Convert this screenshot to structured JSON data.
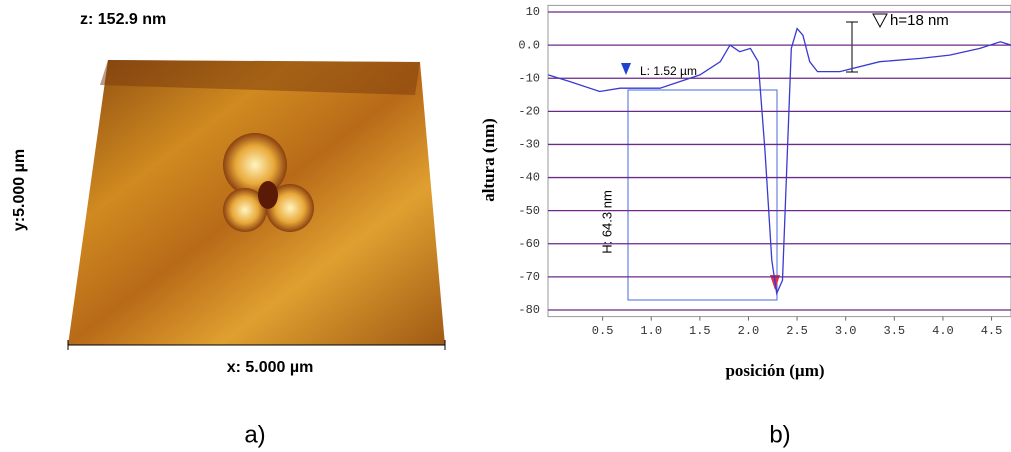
{
  "image_panel": {
    "z_label": "z: 152.9 nm",
    "y_label": "y:5.000 µm",
    "x_label": "x: 5.000 µm",
    "caption": "a)"
  },
  "chart_data": {
    "type": "line",
    "caption": "b)",
    "xlabel": "posición (µm)",
    "ylabel": "altura (nm)",
    "x": [
      -0.06,
      0.16,
      0.47,
      0.68,
      1.09,
      1.5,
      1.71,
      1.81,
      1.91,
      2.02,
      2.1,
      2.17,
      2.24,
      2.29,
      2.35,
      2.4,
      2.44,
      2.5,
      2.56,
      2.63,
      2.71,
      2.94,
      3.35,
      3.77,
      4.07,
      4.38,
      4.59,
      4.7
    ],
    "values": [
      -9,
      -11,
      -14,
      -13,
      -13,
      -9,
      -5,
      0,
      -2,
      -1,
      -5,
      -32,
      -65,
      -75,
      -71,
      -32,
      -1,
      5,
      3,
      -5,
      -8,
      -8,
      -5,
      -4,
      -3,
      -1,
      1,
      0
    ],
    "color": "#3a3ad0",
    "xlim": [
      0,
      4.7
    ],
    "ylim": [
      -82,
      12
    ],
    "xticks": [
      0.5,
      {
        "value": 1,
        "label": "1.0"
      },
      1.5,
      {
        "value": 2,
        "label": "2.0"
      },
      2.5,
      {
        "value": 3,
        "label": "3.0"
      },
      3.5,
      {
        "value": 4,
        "label": "4.0"
      },
      4.5
    ],
    "yticks": [
      10,
      {
        "value": 0,
        "label": "0.0"
      },
      -10,
      -20,
      -30,
      -40,
      -50,
      -60,
      -70,
      -80
    ],
    "grid": true,
    "grid_color": "#6a2a8a",
    "annotations": {
      "length": "L: 1.52 µm",
      "height": "H: 64.3 nm",
      "step": "h=18 nm"
    }
  }
}
